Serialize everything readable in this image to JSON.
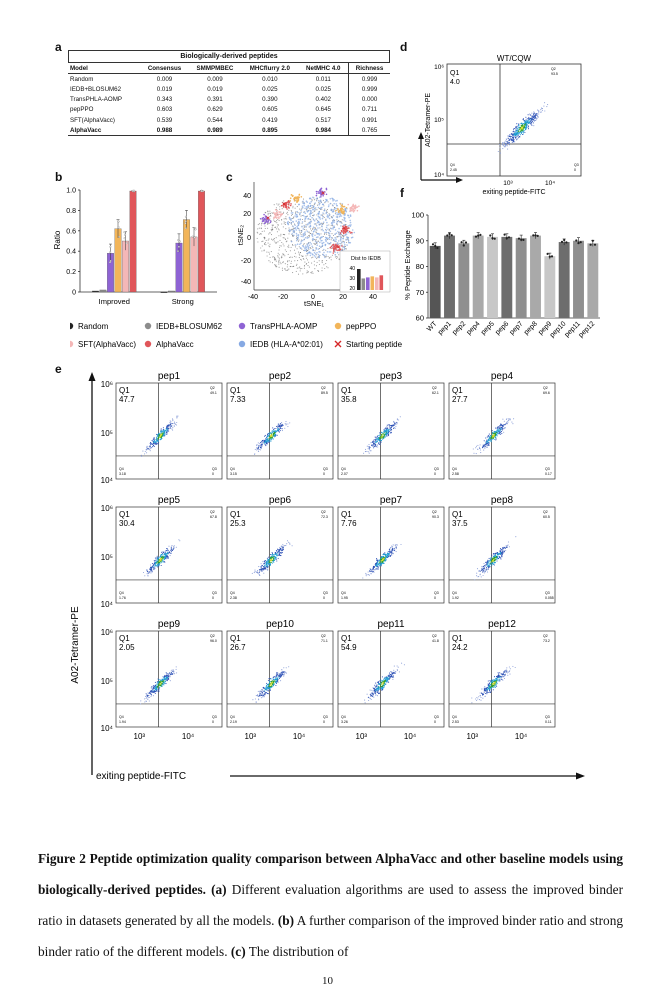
{
  "panel_labels": {
    "a": "a",
    "b": "b",
    "c": "c",
    "d": "d",
    "e": "e",
    "f": "f"
  },
  "table_a": {
    "title": "Biologically-derived peptides",
    "headers": [
      "Model",
      "Consensus",
      "SMMPMBEC",
      "MHCflurry 2.0",
      "NetMHC 4.0",
      "Richness"
    ],
    "rows": [
      [
        "Random",
        "0.009",
        "0.009",
        "0.010",
        "0.011",
        "0.999"
      ],
      [
        "IEDB+BLOSUM62",
        "0.019",
        "0.019",
        "0.025",
        "0.025",
        "0.999"
      ],
      [
        "TransPHLA-AOMP",
        "0.343",
        "0.391",
        "0.390",
        "0.402",
        "0.000"
      ],
      [
        "pepPPO",
        "0.603",
        "0.629",
        "0.605",
        "0.645",
        "0.711"
      ],
      [
        "SFT(AlphaVacc)",
        "0.539",
        "0.544",
        "0.419",
        "0.517",
        "0.991"
      ],
      [
        "AlphaVacc",
        "0.988",
        "0.989",
        "0.895",
        "0.984",
        "0.765"
      ]
    ]
  },
  "panel_d": {
    "title": "WT/CQW",
    "q1_label": "Q1",
    "q1_value": "4.0",
    "q2": "93.5",
    "q3": "0",
    "q4": "2.45",
    "y_ticks": [
      "10⁶",
      "10⁵",
      "10⁴"
    ],
    "x_ticks": [
      "10³",
      "10⁴"
    ],
    "ylabel": "A02-Tetramer-PE",
    "xlabel": "exiting peptide-FITC"
  },
  "panel_e": {
    "ylabel": "A02-Tetramer-PE",
    "xlabel": "exiting peptide-FITC",
    "y_ticks": [
      "10⁶",
      "10⁵",
      "10⁴"
    ],
    "x_ticks": [
      "10³",
      "10⁴"
    ],
    "q1_label": "Q1",
    "plots": [
      {
        "name": "pep1",
        "q1": "47.7",
        "q2": "49.1",
        "q3": "0",
        "q4": "3.18"
      },
      {
        "name": "pep2",
        "q1": "7.33",
        "q2": "89.5",
        "q3": "0",
        "q4": "3.15"
      },
      {
        "name": "pep3",
        "q1": "35.8",
        "q2": "62.1",
        "q3": "0",
        "q4": "2.07"
      },
      {
        "name": "pep4",
        "q1": "27.7",
        "q2": "69.6",
        "q3": "0.17",
        "q4": "2.58"
      },
      {
        "name": "pep5",
        "q1": "30.4",
        "q2": "67.8",
        "q3": "0",
        "q4": "1.76"
      },
      {
        "name": "pep6",
        "q1": "25.3",
        "q2": "72.3",
        "q3": "0",
        "q4": "2.38"
      },
      {
        "name": "pep7",
        "q1": "7.76",
        "q2": "90.3",
        "q3": "0",
        "q4": "1.95"
      },
      {
        "name": "pep8",
        "q1": "37.5",
        "q2": "60.5",
        "q3": "0.055",
        "q4": "1.92"
      },
      {
        "name": "pep9",
        "q1": "2.05",
        "q2": "96.0",
        "q3": "0",
        "q4": "1.94"
      },
      {
        "name": "pep10",
        "q1": "26.7",
        "q2": "71.1",
        "q3": "0",
        "q4": "2.19"
      },
      {
        "name": "pep11",
        "q1": "54.9",
        "q2": "41.8",
        "q3": "0",
        "q4": "3.26"
      },
      {
        "name": "pep12",
        "q1": "24.2",
        "q2": "73.2",
        "q3": "0.11",
        "q4": "2.53"
      }
    ]
  },
  "legend": [
    {
      "label": "Random",
      "color": "#222222",
      "marker": "dot"
    },
    {
      "label": "IEDB+BLOSUM62",
      "color": "#8c8c8c",
      "marker": "dot"
    },
    {
      "label": "TransPHLA-AOMP",
      "color": "#8e63d4",
      "marker": "dot"
    },
    {
      "label": "pepPPO",
      "color": "#f2b55a",
      "marker": "dot"
    },
    {
      "label": "SFT(AlphaVacc)",
      "color": "#f4b7b7",
      "marker": "dot"
    },
    {
      "label": "AlphaVacc",
      "color": "#e0565a",
      "marker": "dot"
    },
    {
      "label": "IEDB (HLA-A*02:01)",
      "color": "#86a9e3",
      "marker": "dot"
    },
    {
      "label": "Starting peptide",
      "color": "#d62728",
      "marker": "cross"
    }
  ],
  "panel_c": {
    "xlabel": "tSNE₁",
    "ylabel": "tSNE₂",
    "x_ticks": [
      "-40",
      "-20",
      "0",
      "20",
      "40"
    ],
    "y_ticks": [
      "40",
      "20",
      "0",
      "-20",
      "-40"
    ],
    "inset_title": "Dist to IEDB",
    "inset_ticks": [
      "40",
      "30",
      "20"
    ]
  },
  "chart_data": [
    {
      "id": "panel_b",
      "type": "bar",
      "categories": [
        "Improved",
        "Strong"
      ],
      "ylabel": "Ratio",
      "ylim": [
        0,
        1.0
      ],
      "y_ticks": [
        "0",
        "0.2",
        "0.4",
        "0.6",
        "0.8",
        "1.0"
      ],
      "series": [
        {
          "name": "Random",
          "color": "#222222",
          "values": [
            0.01,
            0.0
          ]
        },
        {
          "name": "IEDB+BLOSUM62",
          "color": "#8c8c8c",
          "values": [
            0.02,
            0.01
          ]
        },
        {
          "name": "TransPHLA-AOMP",
          "color": "#8e63d4",
          "values": [
            0.38,
            0.48
          ]
        },
        {
          "name": "pepPPO",
          "color": "#f2b55a",
          "values": [
            0.62,
            0.71
          ]
        },
        {
          "name": "SFT(AlphaVacc)",
          "color": "#f4b7b7",
          "values": [
            0.5,
            0.54
          ]
        },
        {
          "name": "AlphaVacc",
          "color": "#e0565a",
          "values": [
            0.99,
            0.99
          ]
        }
      ]
    },
    {
      "id": "panel_f",
      "type": "bar",
      "categories": [
        "WT",
        "pep1",
        "pep2",
        "pep4",
        "pep5",
        "pep6",
        "pep7",
        "pep8",
        "pep9",
        "pep10",
        "pep11",
        "pep12"
      ],
      "values": [
        88,
        92,
        89,
        92,
        91.5,
        91.5,
        91,
        92,
        84,
        89.5,
        90,
        89
      ],
      "ylabel": "% Peptide Exchange",
      "ylim": [
        60,
        100
      ],
      "y_ticks": [
        "60",
        "70",
        "80",
        "90",
        "100"
      ]
    }
  ],
  "caption": {
    "fig_label": "Figure 2 Peptide optimization quality comparison between AlphaVacc and other baseline models using biologically-derived peptides.",
    "a_label": "(a)",
    "a_text": " Different evaluation algorithms are used to assess the improved binder ratio in datasets generated by all the models.",
    "b_label": "(b)",
    "b_text": " A further comparison of the improved binder ratio and strong binder ratio of the different models.",
    "c_label": "(c)",
    "c_text": " The distribution of"
  },
  "page_number": "10"
}
